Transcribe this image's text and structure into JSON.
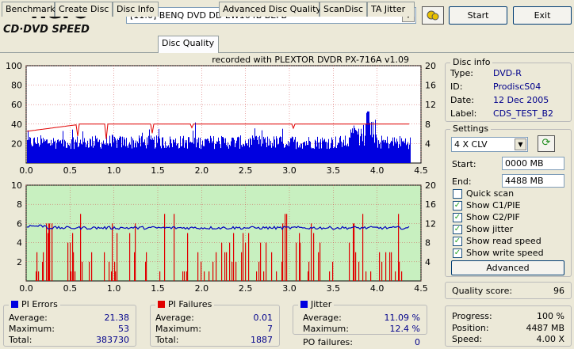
{
  "app": {
    "logo_main": "nero",
    "logo_sub": "CD·DVD SPEED"
  },
  "toolbar": {
    "drive": "[11:0]  BENQ DVD DD EW164B BEFB",
    "start_label": "Start",
    "exit_label": "Exit"
  },
  "tabs": [
    {
      "label": "Benchmark"
    },
    {
      "label": "Create Disc"
    },
    {
      "label": "Disc Info"
    },
    {
      "label": "Disc Quality",
      "active": true
    },
    {
      "label": "Advanced Disc Quality"
    },
    {
      "label": "ScanDisc"
    },
    {
      "label": "TA Jitter"
    }
  ],
  "chart_header": "recorded with PLEXTOR DVDR   PX-716A   v1.09",
  "disc_info": {
    "title": "Disc info",
    "type_label": "Type:",
    "type_value": "DVD-R",
    "id_label": "ID:",
    "id_value": "ProdiscS04",
    "date_label": "Date:",
    "date_value": "12 Dec 2005",
    "label_label": "Label:",
    "label_value": "CDS_TEST_B2"
  },
  "settings": {
    "title": "Settings",
    "speed": "4 X CLV",
    "start_label": "Start:",
    "start_value": "0000 MB",
    "end_label": "End:",
    "end_value": "4488 MB",
    "checks": [
      {
        "label": "Quick scan",
        "checked": false
      },
      {
        "label": "Show C1/PIE",
        "checked": true
      },
      {
        "label": "Show C2/PIF",
        "checked": true
      },
      {
        "label": "Show jitter",
        "checked": true
      },
      {
        "label": "Show read speed",
        "checked": true
      },
      {
        "label": "Show write speed",
        "checked": true
      }
    ],
    "advanced_label": "Advanced"
  },
  "quality": {
    "label": "Quality score:",
    "value": "96"
  },
  "pi_errors": {
    "title": "PI Errors",
    "avg_label": "Average:",
    "avg": "21.38",
    "max_label": "Maximum:",
    "max": "53",
    "total_label": "Total:",
    "total": "383730"
  },
  "pi_failures": {
    "title": "PI Failures",
    "avg_label": "Average:",
    "avg": "0.01",
    "max_label": "Maximum:",
    "max": "7",
    "total_label": "Total:",
    "total": "1887"
  },
  "jitter": {
    "title": "Jitter",
    "avg_label": "Average:",
    "avg": "11.09 %",
    "max_label": "Maximum:",
    "max": "12.4 %",
    "po_label": "PO failures:",
    "po": "0"
  },
  "progress": {
    "progress_label": "Progress:",
    "progress": "100 %",
    "position_label": "Position:",
    "position": "4487 MB",
    "speed_label": "Speed:",
    "speed": "4.00 X"
  },
  "colors": {
    "pie": "#0000e0",
    "pif": "#e00000",
    "jitter": "#0000c0",
    "speed": "#e00000",
    "chart_bg_top": "#ffffff",
    "chart_bg_bottom": "#c8f0c0"
  },
  "chart_data": [
    {
      "type": "area",
      "name": "PI Errors",
      "x_ticks": [
        "0.0",
        "0.5",
        "1.0",
        "1.5",
        "2.0",
        "2.5",
        "3.0",
        "3.5",
        "4.0",
        "4.5"
      ],
      "y_left_ticks": [
        "100",
        "80",
        "60",
        "40",
        "20"
      ],
      "y_right_ticks": [
        "20",
        "16",
        "12",
        "8",
        "4"
      ],
      "xlim": [
        0,
        4.5
      ],
      "ylim_left": [
        0,
        100
      ],
      "ylim_right": [
        0,
        20
      ],
      "pie_level_avg": 21.4,
      "pie_max": 53,
      "speed_level": 8,
      "x_end": 4.38
    },
    {
      "type": "bar",
      "name": "PI Failures",
      "x_ticks": [
        "0.0",
        "0.5",
        "1.0",
        "1.5",
        "2.0",
        "2.5",
        "3.0",
        "3.5",
        "4.0",
        "4.5"
      ],
      "y_left_ticks": [
        "10",
        "8",
        "6",
        "4",
        "2"
      ],
      "y_right_ticks": [
        "20",
        "16",
        "12",
        "8",
        "4"
      ],
      "xlim": [
        0,
        4.5
      ],
      "ylim_left": [
        0,
        10
      ],
      "ylim_right": [
        0,
        20
      ],
      "jitter_avg": 11.09,
      "pif_max": 7,
      "x_end": 4.38
    }
  ]
}
